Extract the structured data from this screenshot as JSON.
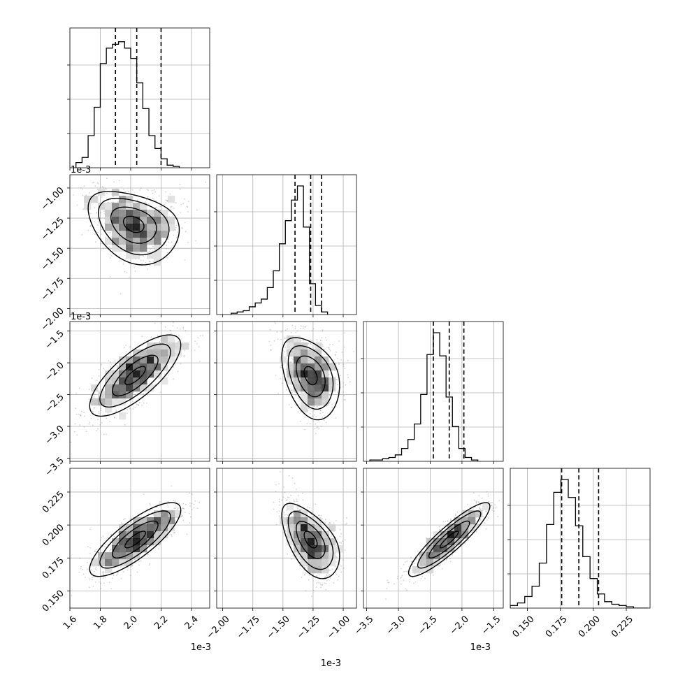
{
  "chart_data": {
    "type": "corner",
    "parameters": [
      {
        "range": [
          1.6,
          2.52
        ],
        "ticks": [
          1.6,
          1.8,
          2.0,
          2.2,
          2.4
        ],
        "tick_labels": [
          "1.6",
          "1.8",
          "2.0",
          "2.2",
          "2.4"
        ],
        "offset_label": "1e-3",
        "axis_label": "",
        "quantiles": [
          1.9,
          2.04,
          2.2
        ],
        "hist": {
          "edges_start": 1.64,
          "bin_width": 0.04,
          "counts": [
            0.04,
            0.08,
            0.25,
            0.47,
            0.81,
            0.93,
            0.96,
            0.98,
            0.93,
            0.85,
            0.66,
            0.46,
            0.25,
            0.15,
            0.07,
            0.02,
            0.01
          ]
        }
      },
      {
        "range": [
          -2.05,
          -0.89
        ],
        "ticks": [
          -2.0,
          -1.75,
          -1.5,
          -1.25,
          -1.0
        ],
        "tick_labels": [
          "−2.00",
          "−1.75",
          "−1.50",
          "−1.25",
          "−1.00"
        ],
        "offset_label": "1e-3",
        "axis_label": "",
        "quantiles": [
          -1.4,
          -1.27,
          -1.18
        ],
        "hist": {
          "edges_start": -1.93,
          "bin_width": 0.05,
          "counts": [
            0.01,
            0.02,
            0.03,
            0.06,
            0.09,
            0.12,
            0.21,
            0.34,
            0.55,
            0.73,
            0.89,
            1.0,
            0.68,
            0.24,
            0.07,
            0.02
          ]
        }
      },
      {
        "range": [
          -3.55,
          -1.35
        ],
        "ticks": [
          -3.5,
          -3.0,
          -2.5,
          -2.0,
          -1.5
        ],
        "tick_labels": [
          "−3.5",
          "−3.0",
          "−2.5",
          "−2.0",
          "−1.5"
        ],
        "offset_label": "1e-3",
        "axis_label": "",
        "quantiles": [
          -2.45,
          -2.2,
          -1.97
        ],
        "hist": {
          "edges_start": -3.45,
          "bin_width": 0.1,
          "counts": [
            0.01,
            0.01,
            0.02,
            0.03,
            0.05,
            0.1,
            0.17,
            0.29,
            0.52,
            0.83,
            1.0,
            0.82,
            0.5,
            0.27,
            0.1,
            0.03,
            0.01
          ]
        }
      },
      {
        "range": [
          0.137,
          0.243
        ],
        "ticks": [
          0.15,
          0.175,
          0.2,
          0.225
        ],
        "tick_labels": [
          "0.150",
          "0.175",
          "0.200",
          "0.225"
        ],
        "offset_label": "",
        "axis_label": "",
        "quantiles": [
          0.176,
          0.189,
          0.204
        ],
        "hist": {
          "edges_start": 0.137,
          "bin_width": 0.0055,
          "counts": [
            0.02,
            0.04,
            0.09,
            0.17,
            0.35,
            0.65,
            0.9,
            1.0,
            0.86,
            0.64,
            0.4,
            0.23,
            0.11,
            0.05,
            0.03,
            0.02,
            0.01,
            0.0,
            0.0
          ]
        }
      }
    ],
    "pairs": [
      {
        "row": 1,
        "col": 0,
        "mean": [
          2.02,
          -1.3
        ],
        "sd": [
          0.15,
          0.15
        ],
        "rho": -0.3,
        "bend": 0.8
      },
      {
        "row": 2,
        "col": 0,
        "mean": [
          2.03,
          -2.2
        ],
        "sd": [
          0.15,
          0.32
        ],
        "rho": 0.75,
        "bend": 0.0
      },
      {
        "row": 3,
        "col": 0,
        "mean": [
          2.03,
          0.189
        ],
        "sd": [
          0.15,
          0.014
        ],
        "rho": 0.8,
        "bend": 0.0
      },
      {
        "row": 2,
        "col": 1,
        "mean": [
          -1.27,
          -2.2
        ],
        "sd": [
          0.12,
          0.32
        ],
        "rho": -0.35,
        "bend": 0.6
      },
      {
        "row": 3,
        "col": 1,
        "mean": [
          -1.27,
          0.189
        ],
        "sd": [
          0.12,
          0.014
        ],
        "rho": -0.55,
        "bend": 0.6
      },
      {
        "row": 3,
        "col": 2,
        "mean": [
          -2.2,
          0.189
        ],
        "sd": [
          0.32,
          0.014
        ],
        "rho": 0.9,
        "bend": 0.0
      }
    ],
    "grid": true,
    "colors": {
      "hist": "#000000",
      "points": "#7f7f7f",
      "density": "#000000",
      "grid": "#b0b0b0"
    }
  }
}
